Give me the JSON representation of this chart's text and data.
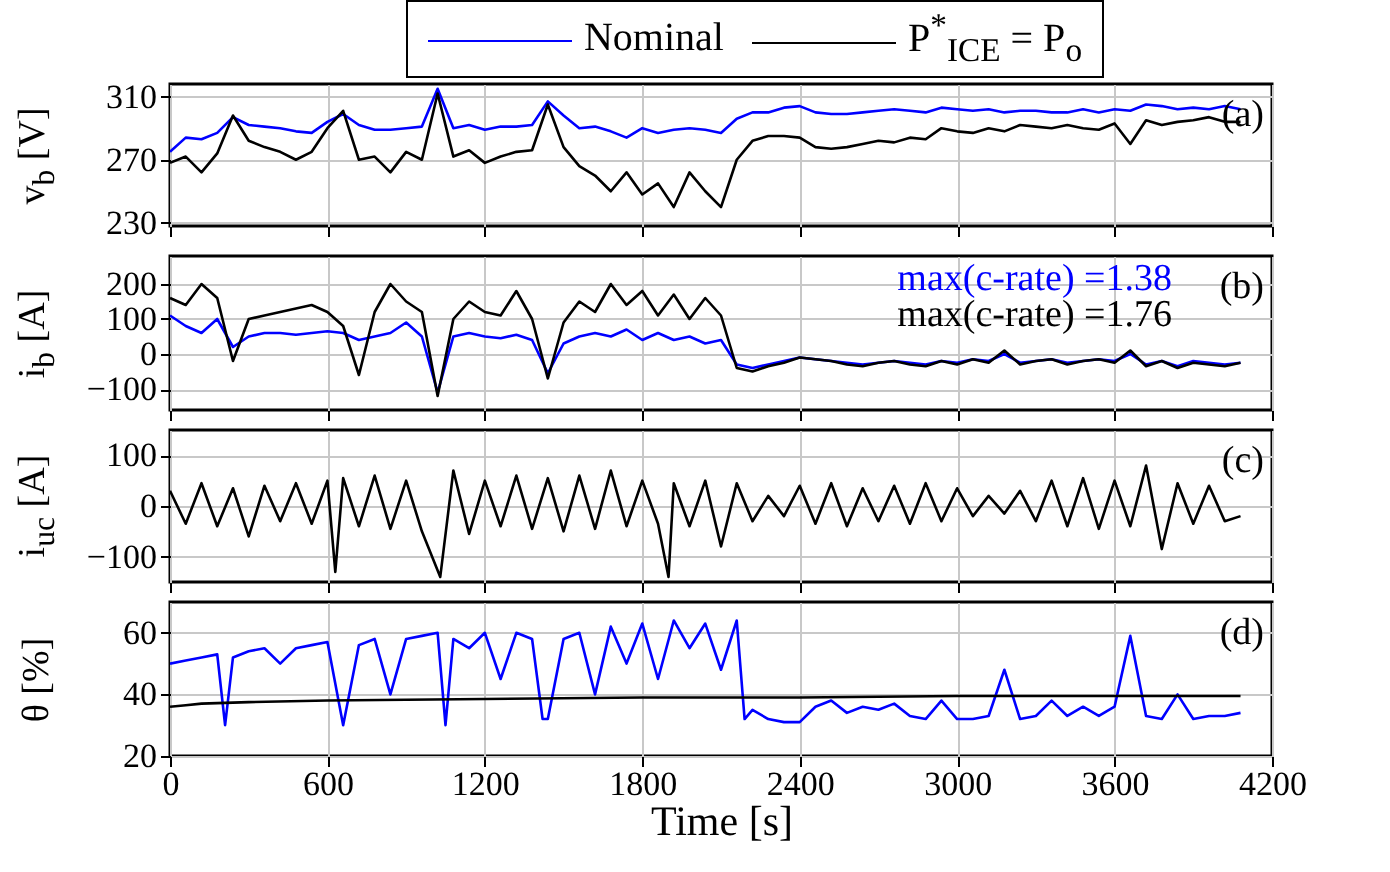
{
  "chart_data": [
    {
      "type": "line",
      "ylabel": "v$_{b}$ [V]",
      "legend": "top",
      "grid": true,
      "tick_labels": "y",
      "xlim": [
        0,
        4200
      ],
      "xticks": [
        0,
        600,
        1200,
        1800,
        2400,
        3000,
        3600,
        4200
      ],
      "ylim": [
        228,
        318
      ],
      "yticks": [
        230,
        270,
        310
      ],
      "annotations": [
        "(a)"
      ],
      "x": [
        0,
        60,
        120,
        180,
        240,
        300,
        360,
        420,
        480,
        540,
        600,
        660,
        720,
        780,
        840,
        900,
        960,
        1020,
        1080,
        1140,
        1200,
        1260,
        1320,
        1380,
        1440,
        1500,
        1560,
        1620,
        1680,
        1740,
        1800,
        1860,
        1920,
        1980,
        2040,
        2100,
        2160,
        2220,
        2280,
        2340,
        2400,
        2460,
        2520,
        2580,
        2640,
        2700,
        2760,
        2820,
        2880,
        2940,
        3000,
        3060,
        3120,
        3180,
        3240,
        3300,
        3360,
        3420,
        3480,
        3540,
        3600,
        3660,
        3720,
        3780,
        3840,
        3900,
        3960,
        4020,
        4080
      ],
      "series": [
        {
          "name": "Nominal",
          "color": "#0000ff",
          "values": [
            275,
            284,
            283,
            287,
            297,
            292,
            291,
            290,
            288,
            287,
            294,
            299,
            292,
            289,
            289,
            290,
            291,
            315,
            290,
            292,
            289,
            291,
            291,
            292,
            307,
            298,
            290,
            291,
            288,
            284,
            290,
            287,
            289,
            290,
            289,
            287,
            296,
            300,
            300,
            303,
            304,
            300,
            299,
            299,
            300,
            301,
            302,
            301,
            300,
            303,
            302,
            301,
            302,
            300,
            301,
            301,
            300,
            300,
            302,
            300,
            302,
            301,
            305,
            304,
            302,
            303,
            302,
            304,
            302
          ]
        },
        {
          "name": "P$^{*}$$_{ICE}$ = P$_{o}$",
          "color": "#000000",
          "values": [
            268,
            272,
            262,
            274,
            298,
            282,
            278,
            275,
            270,
            275,
            290,
            301,
            270,
            272,
            262,
            275,
            270,
            312,
            272,
            276,
            268,
            272,
            275,
            276,
            305,
            278,
            266,
            260,
            250,
            262,
            248,
            255,
            240,
            262,
            250,
            240,
            270,
            282,
            285,
            285,
            284,
            278,
            277,
            278,
            280,
            282,
            281,
            284,
            283,
            290,
            288,
            287,
            290,
            288,
            292,
            291,
            290,
            292,
            290,
            289,
            293,
            280,
            295,
            292,
            294,
            295,
            297,
            294,
            294
          ]
        }
      ]
    },
    {
      "type": "line",
      "ylabel": "i$_{b}$ [A]",
      "grid": true,
      "tick_labels": "y",
      "xlim": [
        0,
        4200
      ],
      "xticks": [
        0,
        600,
        1200,
        1800,
        2400,
        3000,
        3600,
        4200
      ],
      "ylim": [
        -160,
        280
      ],
      "yticks": [
        -100,
        0,
        100,
        200
      ],
      "annotations": [
        "max(c-rate) =1.38",
        "max(c-rate) =1.76",
        "(b)"
      ],
      "x": [
        0,
        60,
        120,
        180,
        240,
        300,
        360,
        420,
        480,
        540,
        600,
        660,
        720,
        780,
        840,
        900,
        960,
        1020,
        1080,
        1140,
        1200,
        1260,
        1320,
        1380,
        1440,
        1500,
        1560,
        1620,
        1680,
        1740,
        1800,
        1860,
        1920,
        1980,
        2040,
        2100,
        2160,
        2220,
        2280,
        2340,
        2400,
        2460,
        2520,
        2580,
        2640,
        2700,
        2760,
        2820,
        2880,
        2940,
        3000,
        3060,
        3120,
        3180,
        3240,
        3300,
        3360,
        3420,
        3480,
        3540,
        3600,
        3660,
        3720,
        3780,
        3840,
        3900,
        3960,
        4020,
        4080
      ],
      "series": [
        {
          "color": "#0000ff",
          "values": [
            110,
            80,
            60,
            100,
            20,
            50,
            60,
            60,
            55,
            60,
            65,
            60,
            40,
            50,
            60,
            90,
            50,
            -110,
            50,
            60,
            50,
            45,
            55,
            40,
            -55,
            30,
            50,
            60,
            50,
            70,
            40,
            60,
            40,
            50,
            30,
            40,
            -30,
            -40,
            -30,
            -20,
            -10,
            -15,
            -20,
            -25,
            -30,
            -25,
            -20,
            -25,
            -30,
            -20,
            -25,
            -15,
            -20,
            0,
            -25,
            -20,
            -15,
            -25,
            -20,
            -15,
            -20,
            0,
            -30,
            -20,
            -35,
            -20,
            -25,
            -30,
            -25
          ]
        },
        {
          "color": "#000000",
          "values": [
            160,
            140,
            200,
            160,
            -20,
            100,
            110,
            120,
            130,
            140,
            120,
            80,
            -60,
            120,
            200,
            150,
            120,
            -120,
            100,
            150,
            120,
            110,
            180,
            100,
            -70,
            90,
            150,
            120,
            200,
            140,
            180,
            110,
            170,
            100,
            160,
            110,
            -40,
            -50,
            -35,
            -25,
            -10,
            -15,
            -20,
            -30,
            -35,
            -25,
            -20,
            -30,
            -35,
            -20,
            -30,
            -15,
            -25,
            10,
            -30,
            -20,
            -15,
            -30,
            -20,
            -15,
            -25,
            10,
            -35,
            -20,
            -40,
            -25,
            -30,
            -35,
            -25
          ]
        }
      ]
    },
    {
      "type": "line",
      "ylabel": "i$_{uc}$ [A]",
      "grid": true,
      "tick_labels": "y",
      "xlim": [
        0,
        4200
      ],
      "xticks": [
        0,
        600,
        1200,
        1800,
        2400,
        3000,
        3600,
        4200
      ],
      "ylim": [
        -150,
        150
      ],
      "yticks": [
        -100,
        0,
        100
      ],
      "annotations": [
        "(c)"
      ],
      "x": [
        0,
        60,
        120,
        180,
        240,
        300,
        360,
        420,
        480,
        540,
        600,
        630,
        660,
        720,
        780,
        840,
        900,
        960,
        1030,
        1080,
        1140,
        1200,
        1260,
        1320,
        1380,
        1440,
        1500,
        1560,
        1620,
        1680,
        1740,
        1800,
        1860,
        1900,
        1920,
        1980,
        2040,
        2100,
        2160,
        2220,
        2280,
        2340,
        2400,
        2460,
        2520,
        2580,
        2640,
        2700,
        2760,
        2820,
        2880,
        2940,
        3000,
        3060,
        3120,
        3180,
        3240,
        3300,
        3360,
        3420,
        3480,
        3540,
        3600,
        3660,
        3720,
        3780,
        3840,
        3900,
        3960,
        4020,
        4080
      ],
      "series": [
        {
          "color": "#000000",
          "values": [
            30,
            -35,
            45,
            -40,
            35,
            -60,
            40,
            -30,
            45,
            -35,
            50,
            -130,
            55,
            -40,
            60,
            -45,
            50,
            -50,
            -140,
            70,
            -55,
            50,
            -40,
            60,
            -45,
            55,
            -50,
            60,
            -45,
            70,
            -40,
            50,
            -35,
            -140,
            45,
            -40,
            50,
            -80,
            45,
            -30,
            20,
            -20,
            40,
            -35,
            45,
            -40,
            35,
            -30,
            40,
            -35,
            45,
            -30,
            35,
            -20,
            20,
            -15,
            30,
            -30,
            50,
            -40,
            55,
            -45,
            50,
            -40,
            80,
            -85,
            45,
            -35,
            40,
            -30,
            -20
          ]
        }
      ]
    },
    {
      "type": "line",
      "ylabel": "θ [%]",
      "xlabel": "Time [s]",
      "grid": true,
      "xlim": [
        0,
        4200
      ],
      "xticks": [
        0,
        600,
        1200,
        1800,
        2400,
        3000,
        3600,
        4200
      ],
      "ylim": [
        20,
        70
      ],
      "yticks": [
        20,
        40,
        60
      ],
      "annotations": [
        "(d)"
      ],
      "series": [
        {
          "color": "#0000ff",
          "x": [
            0,
            60,
            120,
            180,
            210,
            240,
            300,
            360,
            420,
            480,
            540,
            600,
            660,
            720,
            780,
            840,
            900,
            960,
            1020,
            1050,
            1080,
            1140,
            1200,
            1260,
            1320,
            1380,
            1420,
            1440,
            1500,
            1560,
            1620,
            1680,
            1740,
            1800,
            1860,
            1920,
            1980,
            2040,
            2100,
            2160,
            2190,
            2220,
            2280,
            2340,
            2400,
            2460,
            2520,
            2580,
            2640,
            2700,
            2760,
            2820,
            2880,
            2940,
            3000,
            3060,
            3120,
            3180,
            3240,
            3300,
            3360,
            3420,
            3480,
            3540,
            3600,
            3660,
            3720,
            3780,
            3840,
            3900,
            3960,
            4020,
            4080
          ],
          "values": [
            50,
            51,
            52,
            53,
            30,
            52,
            54,
            55,
            50,
            55,
            56,
            57,
            30,
            56,
            58,
            40,
            58,
            59,
            60,
            30,
            58,
            55,
            60,
            45,
            60,
            58,
            32,
            32,
            58,
            60,
            40,
            62,
            50,
            63,
            45,
            64,
            55,
            63,
            48,
            64,
            32,
            35,
            32,
            31,
            31,
            36,
            38,
            34,
            36,
            35,
            37,
            33,
            32,
            38,
            32,
            32,
            33,
            48,
            32,
            33,
            38,
            33,
            36,
            33,
            36,
            59,
            33,
            32,
            40,
            32,
            33,
            33,
            34
          ]
        },
        {
          "color": "#000000",
          "x": [
            0,
            60,
            120,
            300,
            600,
            1200,
            1800,
            2400,
            3000,
            4080
          ],
          "values": [
            36,
            36.5,
            37,
            37.5,
            38,
            38.5,
            39,
            39,
            39.5,
            39.5
          ]
        }
      ]
    }
  ]
}
